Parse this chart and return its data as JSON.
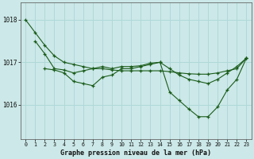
{
  "title": "Graphe pression niveau de la mer (hPa)",
  "background_color": "#cce8e8",
  "plot_bg_color": "#cce8e8",
  "line_color": "#1a5c1a",
  "grid_color": "#b0d8d8",
  "xlim": [
    -0.5,
    23.5
  ],
  "ylim": [
    1015.2,
    1018.4
  ],
  "yticks": [
    1016,
    1017,
    1018
  ],
  "xticks": [
    0,
    1,
    2,
    3,
    4,
    5,
    6,
    7,
    8,
    9,
    10,
    11,
    12,
    13,
    14,
    15,
    16,
    17,
    18,
    19,
    20,
    21,
    22,
    23
  ],
  "series": [
    {
      "x": [
        0,
        1,
        2,
        3,
        4,
        5,
        6,
        7,
        8,
        9,
        10,
        11,
        12,
        13,
        14,
        15,
        16,
        17,
        18,
        19,
        20,
        21,
        22,
        23
      ],
      "y": [
        1018.0,
        1017.7,
        1017.4,
        1017.15,
        1017.0,
        1016.95,
        1016.9,
        1016.85,
        1016.85,
        1016.82,
        1016.8,
        1016.8,
        1016.8,
        1016.8,
        1016.8,
        1016.78,
        1016.75,
        1016.73,
        1016.72,
        1016.72,
        1016.75,
        1016.8,
        1016.85,
        1017.1
      ]
    },
    {
      "x": [
        1,
        2,
        3,
        4,
        5,
        6,
        7,
        8,
        9,
        10,
        11,
        12,
        13,
        14,
        15,
        16,
        17,
        18,
        19,
        20,
        21,
        22,
        23
      ],
      "y": [
        1017.5,
        1017.2,
        1016.85,
        1016.82,
        1016.75,
        1016.8,
        1016.85,
        1016.9,
        1016.85,
        1016.9,
        1016.9,
        1016.92,
        1016.98,
        1017.0,
        1016.85,
        1016.7,
        1016.6,
        1016.55,
        1016.5,
        1016.6,
        1016.75,
        1016.9,
        1017.1
      ]
    },
    {
      "x": [
        2,
        3,
        4,
        5,
        6,
        7,
        8,
        9,
        10,
        11,
        12,
        13,
        14,
        15,
        16,
        17,
        18,
        19,
        20,
        21,
        22,
        23
      ],
      "y": [
        1016.85,
        1016.82,
        1016.75,
        1016.55,
        1016.5,
        1016.45,
        1016.65,
        1016.7,
        1016.85,
        1016.85,
        1016.9,
        1016.95,
        1017.0,
        1016.3,
        1016.1,
        1015.9,
        1015.72,
        1015.72,
        1015.95,
        1016.35,
        1016.6,
        1017.1
      ]
    }
  ]
}
